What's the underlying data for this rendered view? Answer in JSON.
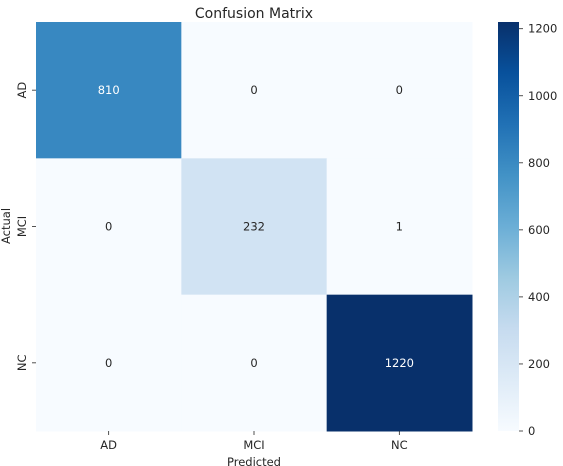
{
  "chart_data": {
    "type": "heatmap",
    "title": "Confusion Matrix",
    "xlabel": "Predicted",
    "ylabel": "Actual",
    "x_categories": [
      "AD",
      "MCI",
      "NC"
    ],
    "y_categories": [
      "AD",
      "MCI",
      "NC"
    ],
    "values": [
      [
        810,
        0,
        0
      ],
      [
        0,
        232,
        1
      ],
      [
        0,
        0,
        1220
      ]
    ],
    "colorscale": "Blues",
    "color_range": [
      0,
      1220
    ],
    "colorbar_ticks": [
      0,
      200,
      400,
      600,
      800,
      1000,
      1200
    ],
    "color_low": "#f7fbff",
    "color_high": "#08306b",
    "grid": false
  }
}
